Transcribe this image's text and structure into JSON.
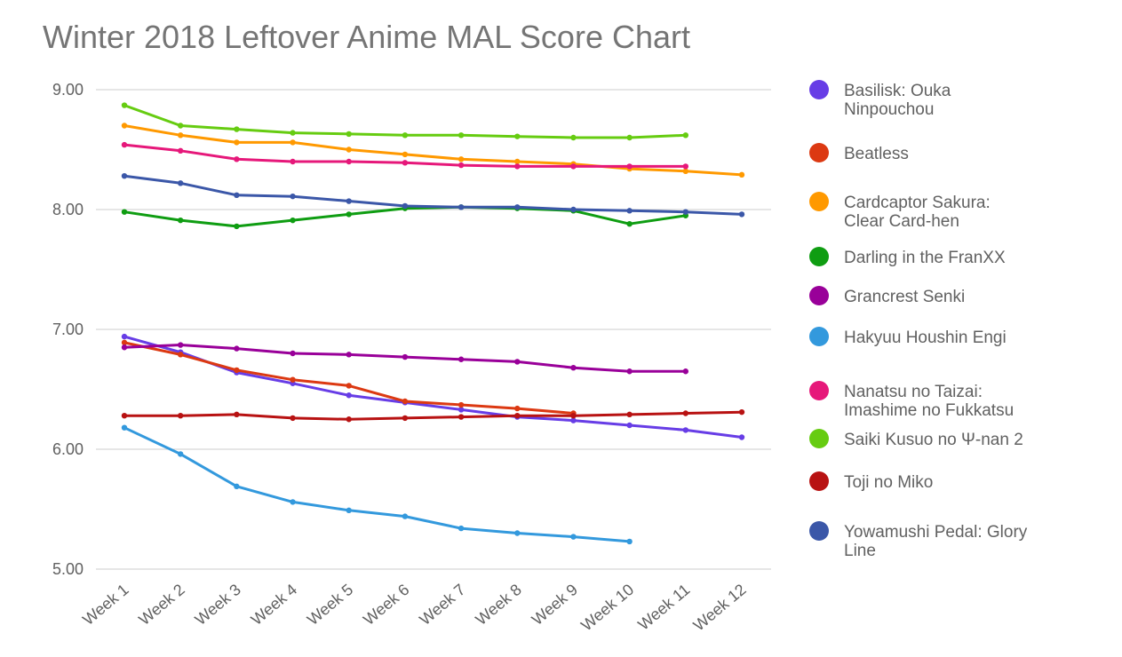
{
  "chart_data": {
    "type": "line",
    "title": "Winter 2018 Leftover Anime MAL Score Chart",
    "xlabel": "",
    "ylabel": "",
    "ylim": [
      5.0,
      9.0
    ],
    "yticks": [
      "9.00",
      "8.00",
      "7.00",
      "6.00",
      "5.00"
    ],
    "grid": true,
    "legend_position": "right",
    "categories": [
      "Week 1",
      "Week 2",
      "Week 3",
      "Week 4",
      "Week 5",
      "Week 6",
      "Week 7",
      "Week 8",
      "Week 9",
      "Week 10",
      "Week 11",
      "Week 12"
    ],
    "series": [
      {
        "name": "Basilisk: Ouka Ninpouchou",
        "legend_lines": [
          "Basilisk: Ouka",
          "Ninpouchou"
        ],
        "color": "#673de6",
        "values": [
          6.94,
          6.81,
          6.64,
          6.55,
          6.45,
          6.39,
          6.33,
          6.27,
          6.24,
          6.2,
          6.16,
          6.1
        ]
      },
      {
        "name": "Beatless",
        "legend_lines": [
          "Beatless"
        ],
        "color": "#dc3912",
        "values": [
          6.89,
          6.79,
          6.66,
          6.58,
          6.53,
          6.4,
          6.37,
          6.34,
          6.3,
          null,
          null,
          null
        ]
      },
      {
        "name": "Cardcaptor Sakura: Clear Card-hen",
        "legend_lines": [
          "Cardcaptor Sakura:",
          "Clear Card-hen"
        ],
        "color": "#ff9900",
        "values": [
          8.7,
          8.62,
          8.56,
          8.56,
          8.5,
          8.46,
          8.42,
          8.4,
          8.38,
          8.34,
          8.32,
          8.29
        ]
      },
      {
        "name": "Darling in the FranXX",
        "legend_lines": [
          "Darling in the FranXX"
        ],
        "color": "#0f9d12",
        "values": [
          7.98,
          7.91,
          7.86,
          7.91,
          7.96,
          8.01,
          8.02,
          8.01,
          7.99,
          7.88,
          7.95,
          null
        ]
      },
      {
        "name": "Grancrest Senki",
        "legend_lines": [
          "Grancrest Senki"
        ],
        "color": "#990099",
        "values": [
          6.85,
          6.87,
          6.84,
          6.8,
          6.79,
          6.77,
          6.75,
          6.73,
          6.68,
          6.65,
          6.65,
          null
        ]
      },
      {
        "name": "Hakyuu Houshin Engi",
        "legend_lines": [
          "Hakyuu Houshin Engi"
        ],
        "color": "#3399dd",
        "values": [
          6.18,
          5.96,
          5.69,
          5.56,
          5.49,
          5.44,
          5.34,
          5.3,
          5.27,
          5.23,
          null,
          null
        ]
      },
      {
        "name": "Nanatsu no Taizai: Imashime no Fukkatsu",
        "legend_lines": [
          "Nanatsu no Taizai:",
          "Imashime no Fukkatsu"
        ],
        "color": "#e6187a",
        "values": [
          8.54,
          8.49,
          8.42,
          8.4,
          8.4,
          8.39,
          8.37,
          8.36,
          8.36,
          8.36,
          8.36,
          null
        ]
      },
      {
        "name": "Saiki Kusuo no Ψ-nan 2",
        "legend_lines": [
          "Saiki Kusuo no Ψ-nan 2"
        ],
        "color": "#66cc11",
        "values": [
          8.87,
          8.7,
          8.67,
          8.64,
          8.63,
          8.62,
          8.62,
          8.61,
          8.6,
          8.6,
          8.62,
          null
        ]
      },
      {
        "name": "Toji no Miko",
        "legend_lines": [
          "Toji no Miko"
        ],
        "color": "#b81212",
        "values": [
          6.28,
          6.28,
          6.29,
          6.26,
          6.25,
          6.26,
          6.27,
          6.28,
          6.28,
          6.29,
          6.3,
          6.31
        ]
      },
      {
        "name": "Yowamushi Pedal: Glory Line",
        "legend_lines": [
          "Yowamushi Pedal: Glory",
          "Line"
        ],
        "color": "#3b57a8",
        "values": [
          8.28,
          8.22,
          8.12,
          8.11,
          8.07,
          8.03,
          8.02,
          8.02,
          8.0,
          7.99,
          7.98,
          7.96
        ]
      }
    ]
  }
}
